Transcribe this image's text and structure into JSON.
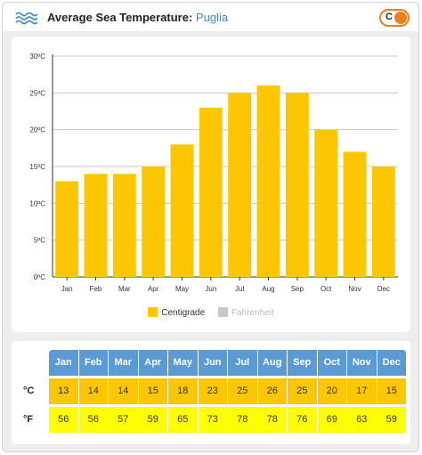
{
  "header": {
    "title": "Average Sea Temperature:",
    "location": "Puglia",
    "unit_toggle_label": "C"
  },
  "colors": {
    "centigrade": "#fdc700",
    "fahrenheit": "#c8c8c8",
    "month_header": "#5b9bd5",
    "fahrenheit_row": "#ffff00",
    "toggle": "#f07f1a",
    "title_location": "#3a8ad0"
  },
  "icons": {
    "header": "waves-icon"
  },
  "chart_data": {
    "type": "bar",
    "categories": [
      "Jan",
      "Feb",
      "Mar",
      "Apr",
      "May",
      "Jun",
      "Jul",
      "Aug",
      "Sep",
      "Oct",
      "Nov",
      "Dec"
    ],
    "series": [
      {
        "name": "Centigrade",
        "values": [
          13,
          14,
          14,
          15,
          18,
          23,
          25,
          26,
          25,
          20,
          17,
          15
        ]
      }
    ],
    "yticks": [
      "0ºC",
      "5ºC",
      "10ºC",
      "15ºC",
      "20ºC",
      "25ºC",
      "30ºC"
    ],
    "ylim": [
      0,
      30
    ],
    "grid": true,
    "legend": [
      {
        "label": "Centigrade",
        "active": true
      },
      {
        "label": "Fahrenheit",
        "active": false
      }
    ],
    "legend_position": "bottom"
  },
  "table": {
    "months": [
      "Jan",
      "Feb",
      "Mar",
      "Apr",
      "May",
      "Jun",
      "Jul",
      "Aug",
      "Sep",
      "Oct",
      "Nov",
      "Dec"
    ],
    "celsius_label": "°C",
    "celsius": [
      "13",
      "14",
      "14",
      "15",
      "18",
      "23",
      "25",
      "26",
      "25",
      "20",
      "17",
      "15"
    ],
    "fahrenheit_label": "°F",
    "fahrenheit": [
      "56",
      "56",
      "57",
      "59",
      "65",
      "73",
      "78",
      "78",
      "76",
      "69",
      "63",
      "59"
    ]
  }
}
